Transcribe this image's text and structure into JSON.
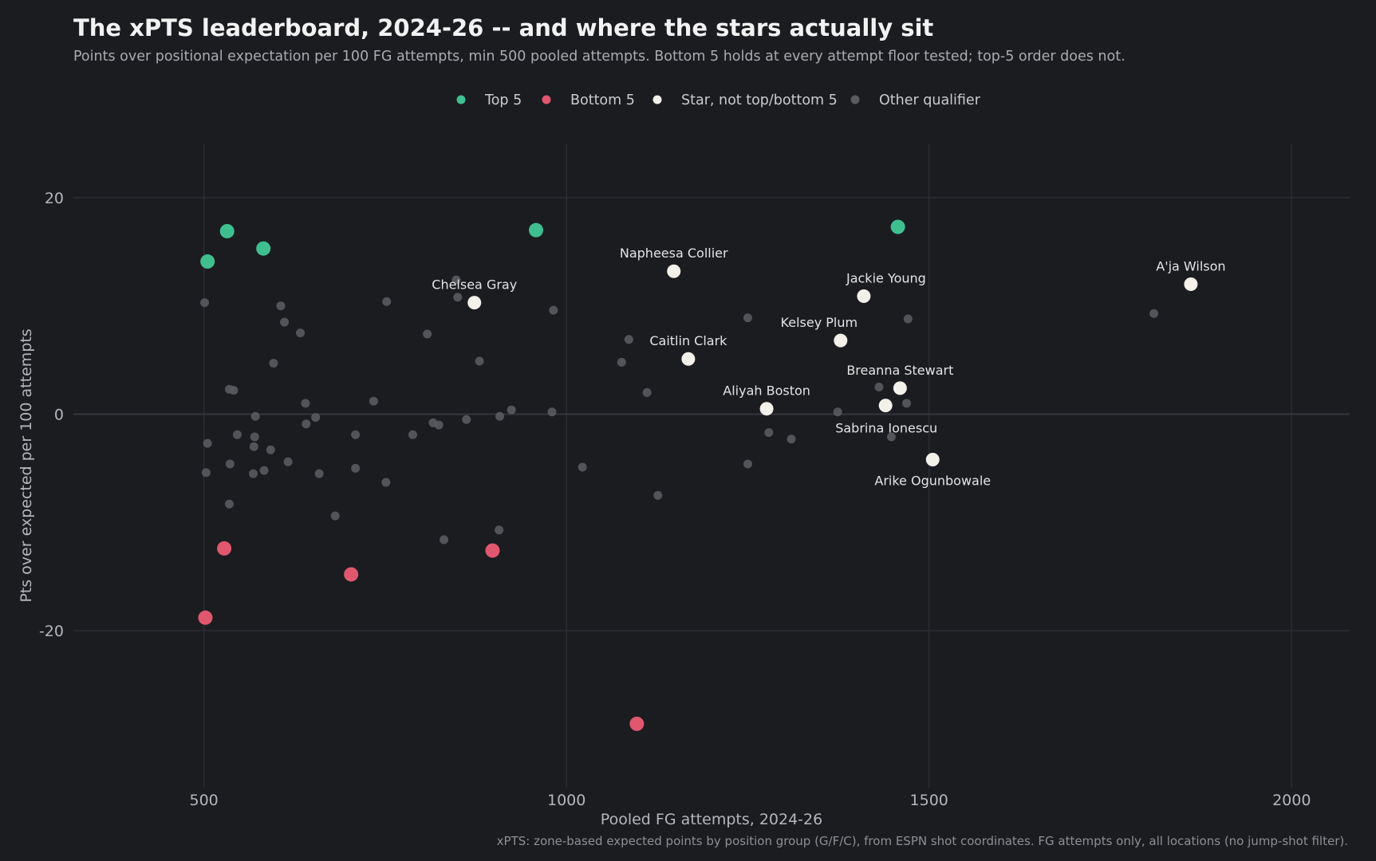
{
  "title": "The xPTS leaderboard, 2024-26 -- and where the stars actually sit",
  "subtitle": "Points over positional expectation per 100 FG attempts, min 500 pooled attempts. Bottom 5 holds at every attempt floor tested; top-5 order does not.",
  "caption": "xPTS: zone-based expected points by position group (G/F/C), from ESPN shot coordinates. FG attempts only, all locations (no jump-shot filter).",
  "legend": [
    {
      "label": "Top 5",
      "color": "#3fbf8f"
    },
    {
      "label": "Bottom 5",
      "color": "#e0576e"
    },
    {
      "label": "Star, not top/bottom 5",
      "color": "#f3f1ea"
    },
    {
      "label": "Other qualifier",
      "color": "#5a5b5f"
    }
  ],
  "chart_data": {
    "type": "scatter",
    "title": "The xPTS leaderboard, 2024-26 -- and where the stars actually sit",
    "xlabel": "Pooled FG attempts, 2024-26",
    "ylabel": "Pts over expected per 100 attempts",
    "xlim": [
      320,
      2080
    ],
    "ylim": [
      -34.5,
      25
    ],
    "xticks": [
      500,
      1000,
      1500,
      2000
    ],
    "yticks": [
      -20,
      0,
      20
    ],
    "grid": true,
    "legend_position": "top",
    "series": [
      {
        "name": "Top 5",
        "color": "#3fbf8f",
        "points": [
          {
            "x": 505,
            "y": 14.1
          },
          {
            "x": 532,
            "y": 16.9
          },
          {
            "x": 582,
            "y": 15.3
          },
          {
            "x": 958,
            "y": 17.0
          },
          {
            "x": 1457,
            "y": 17.3
          }
        ]
      },
      {
        "name": "Bottom 5",
        "color": "#e0576e",
        "points": [
          {
            "x": 502,
            "y": -18.8
          },
          {
            "x": 528,
            "y": -12.4
          },
          {
            "x": 703,
            "y": -14.8
          },
          {
            "x": 898,
            "y": -12.6
          },
          {
            "x": 1097,
            "y": -28.6
          }
        ]
      },
      {
        "name": "Star, not top/bottom 5",
        "color": "#f3f1ea",
        "points": [
          {
            "x": 1148,
            "y": 13.2,
            "label": "Napheesa Collier"
          },
          {
            "x": 873,
            "y": 10.3,
            "label": "Chelsea Gray"
          },
          {
            "x": 1861,
            "y": 12.0,
            "label": "A'ja Wilson"
          },
          {
            "x": 1410,
            "y": 10.9,
            "label": "Jackie Young"
          },
          {
            "x": 1378,
            "y": 6.8,
            "label": "Kelsey Plum"
          },
          {
            "x": 1168,
            "y": 5.1,
            "label": "Caitlin Clark"
          },
          {
            "x": 1460,
            "y": 2.4,
            "label": "Breanna Stewart"
          },
          {
            "x": 1276,
            "y": 0.5,
            "label": "Aliyah Boston"
          },
          {
            "x": 1440,
            "y": 0.8,
            "label": "Sabrina Ionescu"
          },
          {
            "x": 1505,
            "y": -4.2,
            "label": "Arike Ogunbowale"
          }
        ]
      },
      {
        "name": "Other qualifier",
        "color": "#5a5b5f",
        "points": [
          {
            "x": 501,
            "y": 10.3
          },
          {
            "x": 505,
            "y": -2.7
          },
          {
            "x": 503,
            "y": -5.4
          },
          {
            "x": 535,
            "y": 2.3
          },
          {
            "x": 541,
            "y": 2.2
          },
          {
            "x": 546,
            "y": -1.9
          },
          {
            "x": 536,
            "y": -4.6
          },
          {
            "x": 535,
            "y": -8.3
          },
          {
            "x": 571,
            "y": -0.2
          },
          {
            "x": 570,
            "y": -2.1
          },
          {
            "x": 569,
            "y": -3.0
          },
          {
            "x": 568,
            "y": -5.5
          },
          {
            "x": 583,
            "y": -5.2
          },
          {
            "x": 592,
            "y": -3.3
          },
          {
            "x": 596,
            "y": 4.7
          },
          {
            "x": 606,
            "y": 10.0
          },
          {
            "x": 611,
            "y": 8.5
          },
          {
            "x": 616,
            "y": -4.4
          },
          {
            "x": 633,
            "y": 7.5
          },
          {
            "x": 640,
            "y": 1.0
          },
          {
            "x": 641,
            "y": -0.9
          },
          {
            "x": 654,
            "y": -0.3
          },
          {
            "x": 659,
            "y": -5.5
          },
          {
            "x": 681,
            "y": -9.4
          },
          {
            "x": 709,
            "y": -1.9
          },
          {
            "x": 709,
            "y": -5.0
          },
          {
            "x": 734,
            "y": 1.2
          },
          {
            "x": 752,
            "y": 10.4
          },
          {
            "x": 751,
            "y": -6.3
          },
          {
            "x": 788,
            "y": -1.9
          },
          {
            "x": 808,
            "y": 7.4
          },
          {
            "x": 816,
            "y": -0.8
          },
          {
            "x": 824,
            "y": -1.0
          },
          {
            "x": 831,
            "y": -11.6
          },
          {
            "x": 848,
            "y": 12.4
          },
          {
            "x": 850,
            "y": 10.8
          },
          {
            "x": 862,
            "y": -0.5
          },
          {
            "x": 880,
            "y": 4.9
          },
          {
            "x": 908,
            "y": -0.2
          },
          {
            "x": 907,
            "y": -10.7
          },
          {
            "x": 924,
            "y": 0.4
          },
          {
            "x": 980,
            "y": 0.2
          },
          {
            "x": 982,
            "y": 9.6
          },
          {
            "x": 1022,
            "y": -4.9
          },
          {
            "x": 1076,
            "y": 4.8
          },
          {
            "x": 1086,
            "y": 6.9
          },
          {
            "x": 1111,
            "y": 2.0
          },
          {
            "x": 1126,
            "y": -7.5
          },
          {
            "x": 1250,
            "y": 8.9
          },
          {
            "x": 1250,
            "y": -4.6
          },
          {
            "x": 1279,
            "y": -1.7
          },
          {
            "x": 1310,
            "y": -2.3
          },
          {
            "x": 1374,
            "y": 0.2
          },
          {
            "x": 1431,
            "y": 2.5
          },
          {
            "x": 1448,
            "y": -2.1
          },
          {
            "x": 1469,
            "y": 1.0
          },
          {
            "x": 1471,
            "y": 8.8
          },
          {
            "x": 1810,
            "y": 9.3
          }
        ]
      }
    ]
  }
}
